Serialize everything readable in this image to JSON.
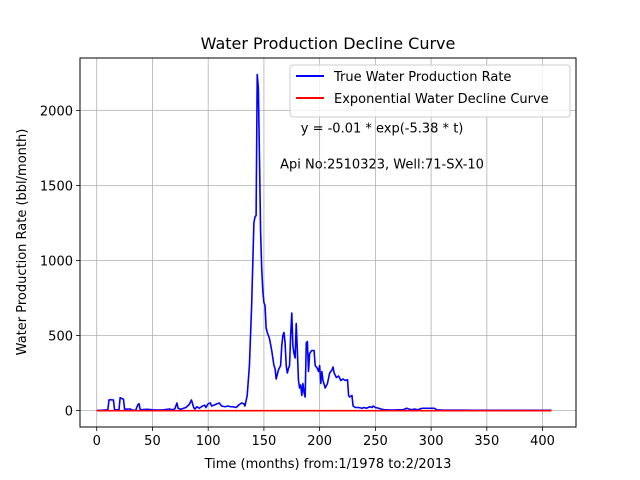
{
  "chart_data": {
    "type": "line",
    "title": "Water Production Decline Curve",
    "xlabel": "Time (months) from:1/1978 to:2/2013",
    "ylabel": "Water Production Rate (bbl/month)",
    "xlim": [
      -15,
      430
    ],
    "ylim": [
      -110,
      2350
    ],
    "xticks": [
      0,
      50,
      100,
      150,
      200,
      250,
      300,
      350,
      400
    ],
    "yticks": [
      0,
      500,
      1000,
      1500,
      2000
    ],
    "grid": true,
    "legend_position": "top-right",
    "annotations": [
      {
        "text": "y = -0.01 * exp(-5.38 * t)",
        "x": 256,
        "y": 1855
      },
      {
        "text": "Api No:2510323, Well:71-SX-10",
        "x": 256,
        "y": 1615
      }
    ],
    "series": [
      {
        "name": "True Water Production Rate",
        "color": "#0000ff",
        "points": [
          [
            0,
            0
          ],
          [
            5,
            2
          ],
          [
            10,
            5
          ],
          [
            11,
            70
          ],
          [
            12,
            72
          ],
          [
            15,
            70
          ],
          [
            16,
            5
          ],
          [
            20,
            5
          ],
          [
            21,
            85
          ],
          [
            22,
            82
          ],
          [
            24,
            75
          ],
          [
            25,
            8
          ],
          [
            28,
            10
          ],
          [
            30,
            10
          ],
          [
            32,
            3
          ],
          [
            35,
            2
          ],
          [
            37,
            40
          ],
          [
            38,
            45
          ],
          [
            39,
            5
          ],
          [
            45,
            8
          ],
          [
            50,
            5
          ],
          [
            55,
            3
          ],
          [
            60,
            5
          ],
          [
            65,
            10
          ],
          [
            68,
            5
          ],
          [
            70,
            10
          ],
          [
            72,
            50
          ],
          [
            73,
            15
          ],
          [
            75,
            8
          ],
          [
            78,
            15
          ],
          [
            80,
            20
          ],
          [
            83,
            40
          ],
          [
            85,
            70
          ],
          [
            87,
            20
          ],
          [
            88,
            10
          ],
          [
            90,
            25
          ],
          [
            92,
            15
          ],
          [
            95,
            30
          ],
          [
            97,
            35
          ],
          [
            98,
            20
          ],
          [
            100,
            45
          ],
          [
            102,
            50
          ],
          [
            103,
            30
          ],
          [
            105,
            35
          ],
          [
            108,
            45
          ],
          [
            110,
            50
          ],
          [
            112,
            30
          ],
          [
            115,
            25
          ],
          [
            118,
            30
          ],
          [
            120,
            25
          ],
          [
            122,
            25
          ],
          [
            125,
            20
          ],
          [
            128,
            40
          ],
          [
            130,
            50
          ],
          [
            132,
            45
          ],
          [
            133,
            30
          ],
          [
            135,
            100
          ],
          [
            137,
            300
          ],
          [
            139,
            700
          ],
          [
            141,
            1250
          ],
          [
            142,
            1290
          ],
          [
            143,
            1300
          ],
          [
            144,
            2240
          ],
          [
            145,
            2150
          ],
          [
            146,
            1700
          ],
          [
            147,
            1200
          ],
          [
            148,
            950
          ],
          [
            149,
            800
          ],
          [
            150,
            720
          ],
          [
            151,
            700
          ],
          [
            152,
            550
          ],
          [
            153,
            520
          ],
          [
            155,
            480
          ],
          [
            157,
            400
          ],
          [
            159,
            300
          ],
          [
            160,
            280
          ],
          [
            161,
            210
          ],
          [
            162,
            240
          ],
          [
            163,
            270
          ],
          [
            165,
            300
          ],
          [
            166,
            430
          ],
          [
            167,
            500
          ],
          [
            168,
            520
          ],
          [
            169,
            450
          ],
          [
            170,
            300
          ],
          [
            171,
            250
          ],
          [
            172,
            280
          ],
          [
            173,
            300
          ],
          [
            174,
            500
          ],
          [
            175,
            650
          ],
          [
            176,
            430
          ],
          [
            177,
            380
          ],
          [
            178,
            350
          ],
          [
            179,
            580
          ],
          [
            180,
            400
          ],
          [
            181,
            200
          ],
          [
            182,
            150
          ],
          [
            183,
            170
          ],
          [
            184,
            100
          ],
          [
            185,
            180
          ],
          [
            186,
            120
          ],
          [
            187,
            90
          ],
          [
            188,
            450
          ],
          [
            189,
            460
          ],
          [
            190,
            260
          ],
          [
            191,
            380
          ],
          [
            193,
            400
          ],
          [
            195,
            400
          ],
          [
            196,
            300
          ],
          [
            198,
            280
          ],
          [
            199,
            260
          ],
          [
            200,
            300
          ],
          [
            201,
            180
          ],
          [
            202,
            260
          ],
          [
            203,
            200
          ],
          [
            205,
            150
          ],
          [
            207,
            180
          ],
          [
            209,
            250
          ],
          [
            211,
            270
          ],
          [
            212,
            290
          ],
          [
            213,
            250
          ],
          [
            215,
            220
          ],
          [
            217,
            230
          ],
          [
            219,
            200
          ],
          [
            221,
            210
          ],
          [
            223,
            200
          ],
          [
            225,
            205
          ],
          [
            226,
            100
          ],
          [
            227,
            90
          ],
          [
            229,
            100
          ],
          [
            230,
            30
          ],
          [
            232,
            20
          ],
          [
            235,
            20
          ],
          [
            238,
            15
          ],
          [
            240,
            20
          ],
          [
            242,
            15
          ],
          [
            245,
            25
          ],
          [
            247,
            20
          ],
          [
            248,
            30
          ],
          [
            250,
            20
          ],
          [
            253,
            15
          ],
          [
            255,
            10
          ],
          [
            258,
            5
          ],
          [
            260,
            5
          ],
          [
            265,
            3
          ],
          [
            270,
            5
          ],
          [
            275,
            5
          ],
          [
            278,
            15
          ],
          [
            280,
            10
          ],
          [
            283,
            5
          ],
          [
            285,
            10
          ],
          [
            288,
            5
          ],
          [
            290,
            10
          ],
          [
            292,
            15
          ],
          [
            295,
            15
          ],
          [
            300,
            15
          ],
          [
            303,
            15
          ],
          [
            305,
            5
          ],
          [
            310,
            3
          ],
          [
            320,
            2
          ],
          [
            330,
            2
          ],
          [
            340,
            1
          ],
          [
            350,
            1
          ],
          [
            360,
            1
          ],
          [
            370,
            1
          ],
          [
            380,
            1
          ],
          [
            390,
            1
          ],
          [
            400,
            1
          ],
          [
            408,
            1
          ]
        ]
      },
      {
        "name": "Exponential Water Decline Curve",
        "color": "#ff0000",
        "points": [
          [
            0,
            -1
          ],
          [
            408,
            -1
          ]
        ]
      }
    ]
  }
}
